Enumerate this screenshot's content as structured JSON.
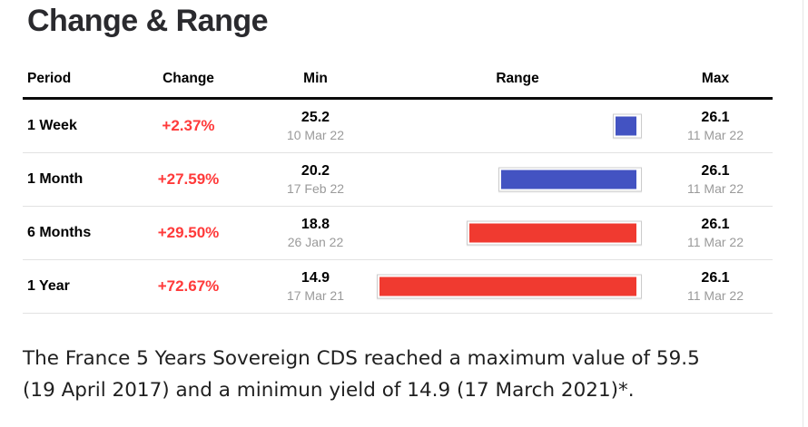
{
  "page": {
    "title": "Change & Range"
  },
  "table": {
    "headers": {
      "period": "Period",
      "change": "Change",
      "min": "Min",
      "range": "Range",
      "max": "Max"
    },
    "rows": [
      {
        "period": "1 Week",
        "change": "+2.37%",
        "min": "25.2",
        "min_date": "10 Mar 22",
        "max": "26.1",
        "max_date": "11 Mar 22"
      },
      {
        "period": "1 Month",
        "change": "+27.59%",
        "min": "20.2",
        "min_date": "17 Feb 22",
        "max": "26.1",
        "max_date": "11 Mar 22"
      },
      {
        "period": "6 Months",
        "change": "+29.50%",
        "min": "18.8",
        "min_date": "26 Jan 22",
        "max": "26.1",
        "max_date": "11 Mar 22"
      },
      {
        "period": "1 Year",
        "change": "+72.67%",
        "min": "14.9",
        "min_date": "17 Mar 21",
        "max": "26.1",
        "max_date": "11 Mar 22"
      }
    ]
  },
  "footnote": {
    "line1": "The France 5 Years Sovereign CDS reached a maximum value of 59.5",
    "line2": "(19 April 2017) and a minimun yield of 14.9 (17 March 2021)*."
  },
  "colors": {
    "change_text": "#ff3a3a",
    "bar_blue": "#4353c2",
    "bar_red": "#f03a30",
    "date_text": "#9a9a9a",
    "header_rule": "#0a0a0a"
  },
  "chart_data": {
    "type": "table",
    "title": "Change & Range",
    "columns": [
      "Period",
      "Change",
      "Min",
      "Range",
      "Max"
    ],
    "range_axis": [
      14.9,
      26.1
    ],
    "layout_hint": "range bars right-aligned at shared max value; width proportional to (max - min); max bar width 283px",
    "rows": [
      {
        "period": "1 Week",
        "change_pct": 2.37,
        "min": 25.2,
        "min_date": "10 Mar 22",
        "max": 26.1,
        "max_date": "11 Mar 22",
        "bar_color": "#4353c2"
      },
      {
        "period": "1 Month",
        "change_pct": 27.59,
        "min": 20.2,
        "min_date": "17 Feb 22",
        "max": 26.1,
        "max_date": "11 Mar 22",
        "bar_color": "#4353c2"
      },
      {
        "period": "6 Months",
        "change_pct": 29.5,
        "min": 18.8,
        "min_date": "26 Jan 22",
        "max": 26.1,
        "max_date": "11 Mar 22",
        "bar_color": "#f03a30"
      },
      {
        "period": "1 Year",
        "change_pct": 72.67,
        "min": 14.9,
        "min_date": "17 Mar 21",
        "max": 26.1,
        "max_date": "11 Mar 22",
        "bar_color": "#f03a30"
      }
    ]
  }
}
